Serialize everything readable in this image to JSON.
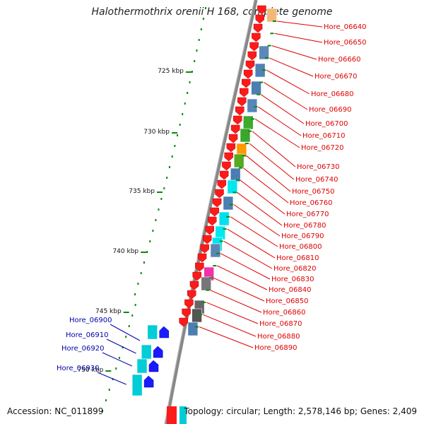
{
  "title": "Halothermothrix orenii H 168, complete genome",
  "accession_text": "Accession: NC_011899",
  "summary_text": "Topology: circular; Length: 2,578,146 bp; Genes: 2,409",
  "colors": {
    "forward_label": "#dd0000",
    "reverse_label": "#0000aa",
    "backbone": "#888888",
    "tick": "#0a8a0a"
  },
  "ruler_labels": [
    "725 kbp",
    "730 kbp",
    "735 kbp",
    "740 kbp",
    "745 kbp",
    "750 kbp"
  ],
  "forward_genes": [
    "Hore_06640",
    "Hore_06650",
    "Hore_06660",
    "Hore_06670",
    "Hore_06680",
    "Hore_06690",
    "Hore_06700",
    "Hore_06710",
    "Hore_06720",
    "Hore_06730",
    "Hore_06740",
    "Hore_06750",
    "Hore_06760",
    "Hore_06770",
    "Hore_06780",
    "Hore_06790",
    "Hore_06800",
    "Hore_06810",
    "Hore_06820",
    "Hore_06830",
    "Hore_06840",
    "Hore_06850",
    "Hore_06860",
    "Hore_06870",
    "Hore_06880",
    "Hore_06890"
  ],
  "reverse_genes": [
    "Hore_06900",
    "Hore_06910",
    "Hore_06920",
    "Hore_06930"
  ]
}
